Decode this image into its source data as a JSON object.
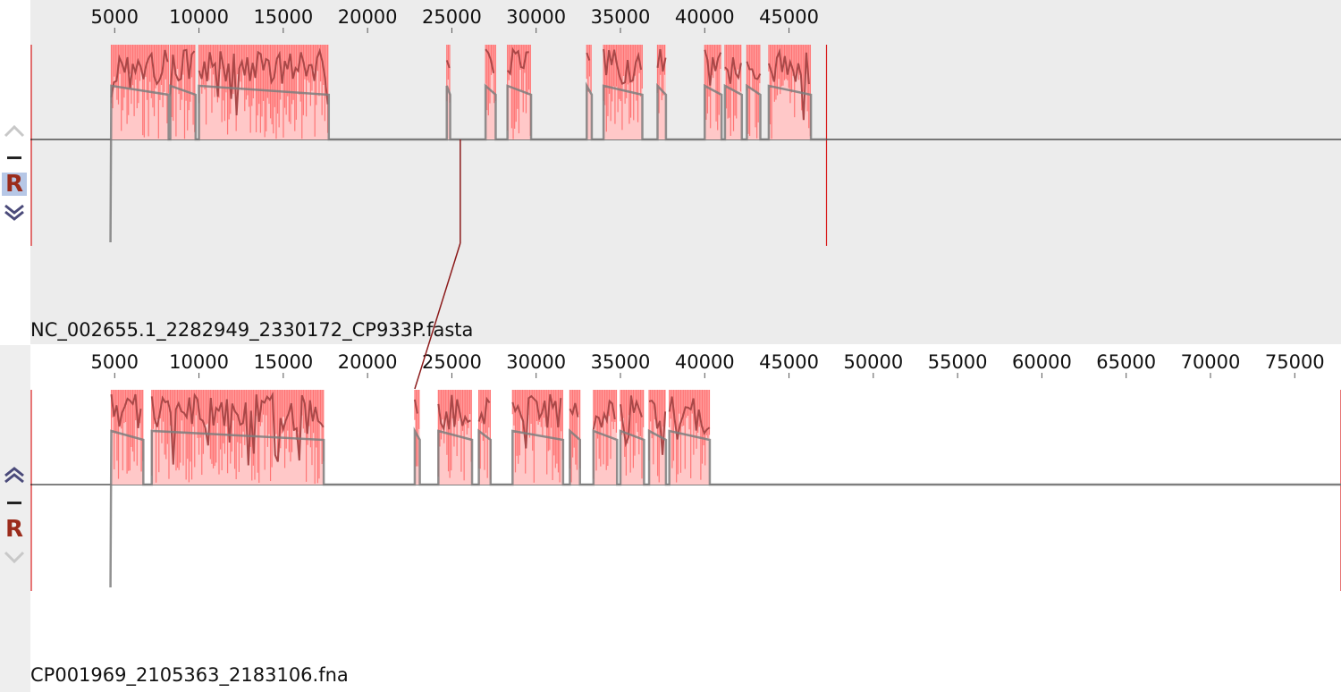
{
  "colors": {
    "accent_red": "#d81b1b",
    "identity_fill": "#ffc8c8",
    "identity_strong": "#ff6c6c",
    "identity_line": "#a94848",
    "gc_line": "#7e7e7e",
    "top_bg": "#ececec",
    "bottom_bg": "#ffffff"
  },
  "tracks": [
    {
      "id": "top",
      "sequence_label": "NC_002655.1_2282949_2330172_CP933P.fasta",
      "axis_ticks": [
        "5000",
        "10000",
        "15000",
        "20000",
        "25000",
        "30000",
        "35000",
        "40000",
        "45000"
      ],
      "controls": {
        "up_icon": "chevron-up-icon",
        "minus_icon": "minus-icon",
        "r_label": "R",
        "r_selected": true,
        "down_icon": "double-chevron-down-icon",
        "up_enabled": false,
        "down_enabled": true
      }
    },
    {
      "id": "bottom",
      "sequence_label": "CP001969_2105363_2183106.fna",
      "axis_ticks": [
        "5000",
        "10000",
        "15000",
        "20000",
        "25000",
        "30000",
        "35000",
        "40000",
        "45000",
        "50000",
        "55000",
        "60000",
        "65000",
        "70000",
        "75000"
      ],
      "controls": {
        "up_icon": "double-chevron-up-icon",
        "minus_icon": "minus-icon",
        "r_label": "R",
        "r_selected": false,
        "down_icon": "chevron-down-icon",
        "up_enabled": true,
        "down_enabled": false
      }
    }
  ],
  "match_link": {
    "top_position": 25500,
    "bottom_position": 22800
  }
}
